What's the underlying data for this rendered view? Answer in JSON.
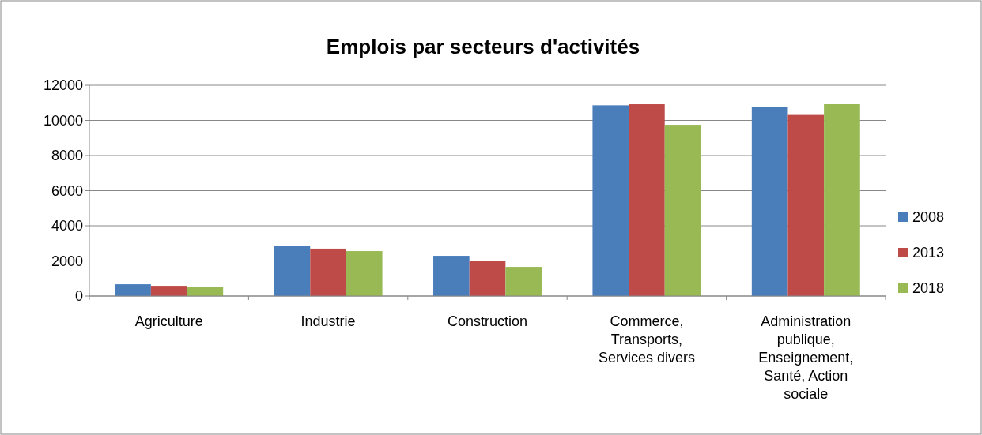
{
  "chart_data": {
    "type": "bar",
    "title": "Emplois par secteurs d'activités",
    "categories": [
      "Agriculture",
      "Industrie",
      "Construction",
      "Commerce, Transports, Services divers",
      "Administration publique, Enseignement, Santé, Action sociale"
    ],
    "series": [
      {
        "name": "2008",
        "color": "#4a7ebb",
        "values": [
          670,
          2850,
          2290,
          10860,
          10760
        ]
      },
      {
        "name": "2013",
        "color": "#be4b48",
        "values": [
          580,
          2700,
          2020,
          10920,
          10310
        ]
      },
      {
        "name": "2018",
        "color": "#98b954",
        "values": [
          530,
          2560,
          1660,
          9750,
          10920
        ]
      }
    ],
    "ylim": [
      0,
      12000
    ],
    "yticks": [
      0,
      2000,
      4000,
      6000,
      8000,
      10000,
      12000
    ],
    "grid": "y",
    "legend": "right"
  }
}
